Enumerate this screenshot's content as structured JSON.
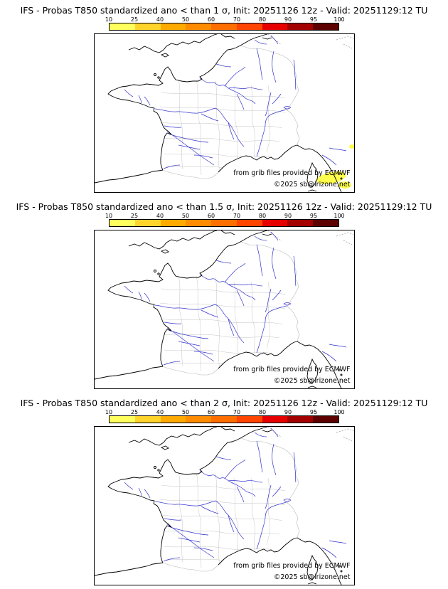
{
  "panels": [
    {
      "title": "IFS - Probas T850  standardized ano < than 1 σ, Init: 20251126 12z - Valid: 20251129:12 TU",
      "threshold": "1 σ",
      "shading_note": "small yellow 10-25% probability patch southeast of Corsica and at right map edge"
    },
    {
      "title": "IFS - Probas T850  standardized ano < than 1.5 σ, Init: 20251126 12z - Valid: 20251129:12 TU",
      "threshold": "1.5 σ",
      "shading_note": ""
    },
    {
      "title": "IFS - Probas T850  standardized ano < than 2 σ, Init: 20251126 12z - Valid: 20251129:12 TU",
      "threshold": "2 σ",
      "shading_note": ""
    }
  ],
  "colorbar": {
    "ticks": [
      "10",
      "25",
      "40",
      "50",
      "60",
      "70",
      "80",
      "90",
      "95",
      "100"
    ],
    "segment_colors": [
      "#ffff5e",
      "#ffd52c",
      "#ffaa00",
      "#ff8c00",
      "#ff6f00",
      "#ff4500",
      "#e60000",
      "#a30000",
      "#5c0000"
    ]
  },
  "credits": {
    "provider": "from grib files provided by ECMWF",
    "copyright": "©2025 sb@irizone.net"
  },
  "map_colors": {
    "coastline": "#000000",
    "rivers": "#3333cc",
    "departments": "#c4c4c4",
    "shading_10_25": "#ffff4d"
  }
}
